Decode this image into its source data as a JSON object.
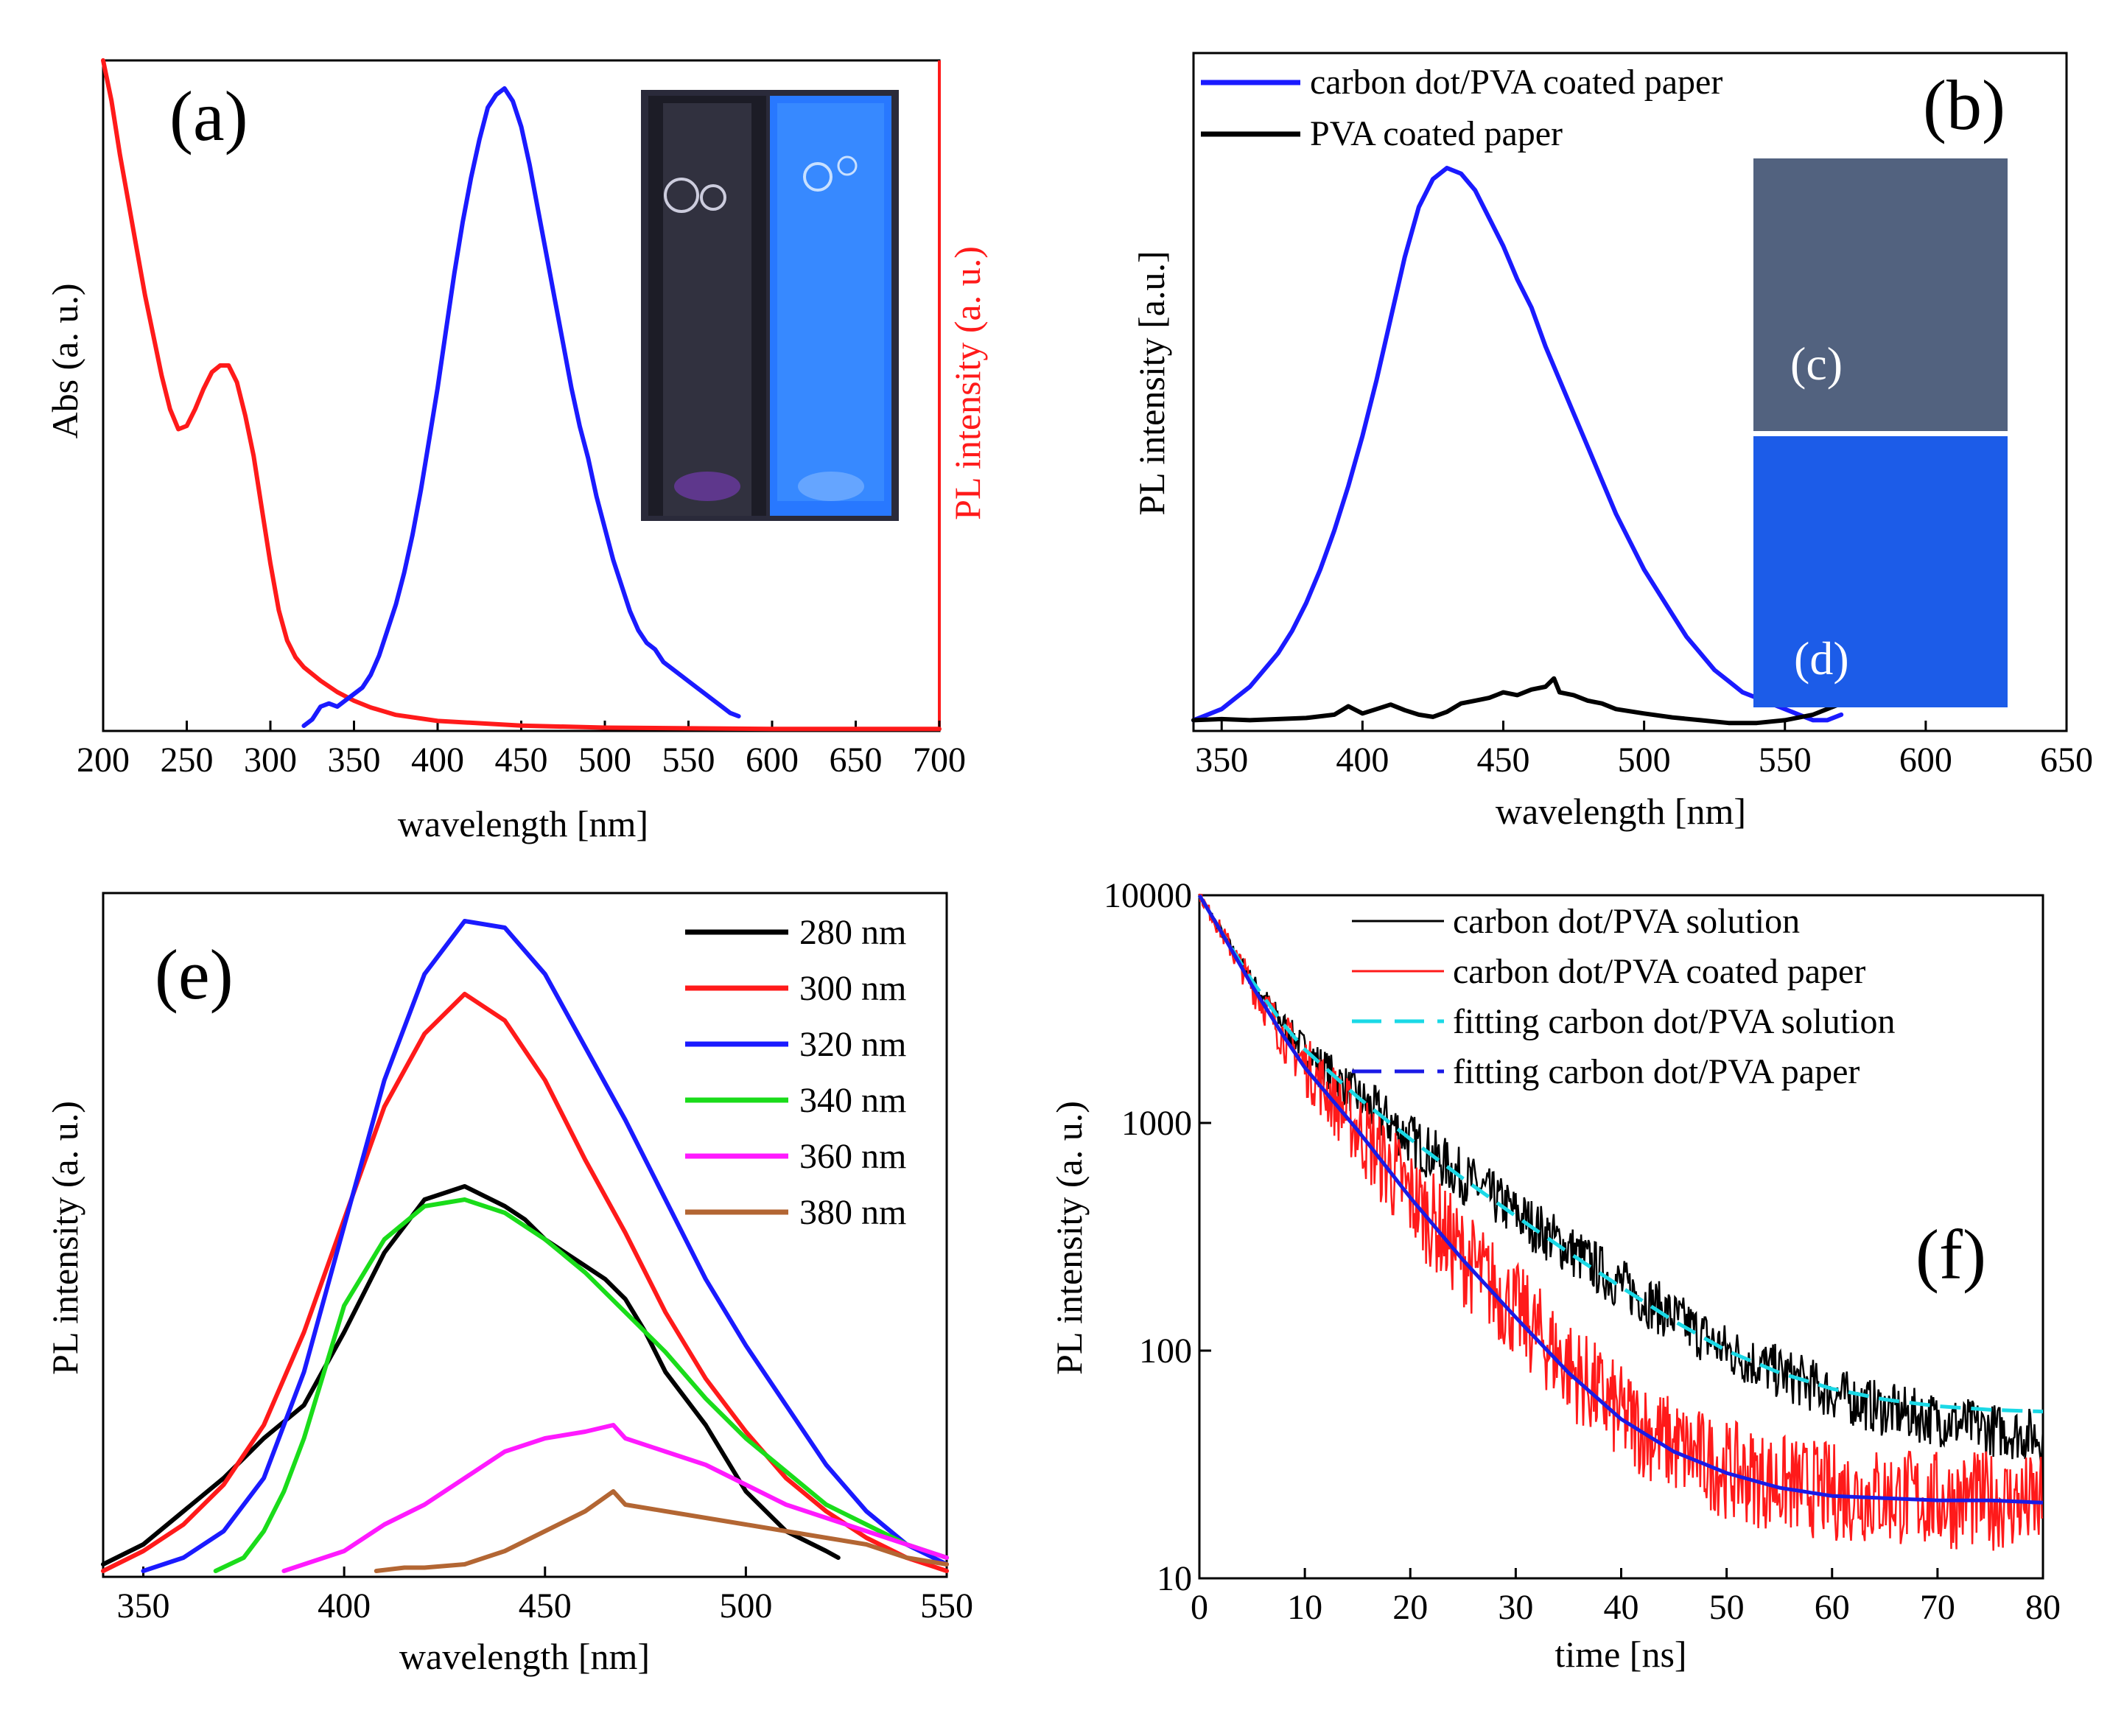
{
  "chart_data": [
    {
      "id": "a",
      "type": "line",
      "panel_label": "(a)",
      "xlabel": "wavelength [nm]",
      "ylabel_left": "Abs (a. u.)",
      "ylabel_right": "PL intensity (a. u.)",
      "xlim": [
        200,
        700
      ],
      "ylim": [
        0,
        1
      ],
      "xticks": [
        "200",
        "250",
        "300",
        "350",
        "400",
        "450",
        "500",
        "550",
        "600",
        "650",
        "700"
      ],
      "colors": {
        "abs": "#ff1a1a",
        "pl": "#1a1aff",
        "right_axis": "#ff1a1a"
      },
      "series": [
        {
          "name": "Abs",
          "color": "#ff1a1a",
          "x": [
            200,
            205,
            210,
            215,
            220,
            225,
            230,
            235,
            240,
            245,
            250,
            255,
            260,
            265,
            270,
            275,
            280,
            285,
            290,
            295,
            300,
            305,
            310,
            315,
            320,
            330,
            340,
            350,
            360,
            375,
            400,
            450,
            500,
            550,
            600,
            650,
            700
          ],
          "y": [
            1.0,
            0.94,
            0.86,
            0.79,
            0.72,
            0.65,
            0.59,
            0.53,
            0.48,
            0.45,
            0.455,
            0.48,
            0.51,
            0.535,
            0.545,
            0.545,
            0.52,
            0.47,
            0.41,
            0.33,
            0.25,
            0.18,
            0.135,
            0.11,
            0.095,
            0.075,
            0.058,
            0.045,
            0.035,
            0.024,
            0.015,
            0.008,
            0.005,
            0.004,
            0.003,
            0.003,
            0.003
          ]
        },
        {
          "name": "PL",
          "color": "#1a1aff",
          "x": [
            320,
            325,
            330,
            335,
            340,
            345,
            350,
            355,
            360,
            365,
            370,
            375,
            380,
            385,
            390,
            395,
            400,
            405,
            410,
            415,
            420,
            425,
            430,
            435,
            440,
            445,
            450,
            455,
            460,
            465,
            470,
            475,
            480,
            485,
            490,
            495,
            500,
            505,
            510,
            515,
            520,
            525,
            530,
            535,
            540,
            545,
            550,
            555,
            560,
            565,
            570,
            575,
            580
          ],
          "y": [
            0,
            0.01,
            0.03,
            0.035,
            0.03,
            0.04,
            0.05,
            0.06,
            0.08,
            0.11,
            0.15,
            0.19,
            0.24,
            0.3,
            0.37,
            0.45,
            0.53,
            0.62,
            0.71,
            0.79,
            0.86,
            0.92,
            0.97,
            0.99,
            1.0,
            0.98,
            0.94,
            0.88,
            0.81,
            0.74,
            0.67,
            0.6,
            0.53,
            0.47,
            0.42,
            0.36,
            0.31,
            0.26,
            0.22,
            0.18,
            0.15,
            0.13,
            0.12,
            0.1,
            0.09,
            0.08,
            0.07,
            0.06,
            0.05,
            0.04,
            0.03,
            0.02,
            0.015
          ]
        }
      ]
    },
    {
      "id": "b",
      "type": "line",
      "panel_label": "(b)",
      "xlabel": "wavelength [nm]",
      "ylabel": "PL intensity [a.u.]",
      "xlim": [
        340,
        650
      ],
      "ylim": [
        0,
        1
      ],
      "xticks": [
        "350",
        "400",
        "450",
        "500",
        "550",
        "600",
        "650"
      ],
      "legend": [
        "carbon dot/PVA coated paper",
        "PVA coated paper"
      ],
      "inset_labels": [
        "(c)",
        "(d)"
      ],
      "series": [
        {
          "name": "carbon dot/PVA coated paper",
          "color": "#1a1aff",
          "x": [
            340,
            345,
            350,
            355,
            360,
            365,
            370,
            375,
            380,
            385,
            390,
            395,
            400,
            405,
            410,
            415,
            420,
            425,
            430,
            435,
            440,
            445,
            450,
            455,
            460,
            465,
            470,
            475,
            480,
            485,
            490,
            495,
            500,
            505,
            510,
            515,
            520,
            525,
            530,
            535,
            540,
            545,
            550,
            555,
            560,
            565,
            570
          ],
          "y": [
            0.01,
            0.02,
            0.03,
            0.05,
            0.07,
            0.1,
            0.13,
            0.17,
            0.22,
            0.28,
            0.35,
            0.43,
            0.52,
            0.62,
            0.73,
            0.84,
            0.93,
            0.98,
            1.0,
            0.99,
            0.96,
            0.91,
            0.86,
            0.8,
            0.75,
            0.68,
            0.62,
            0.56,
            0.5,
            0.44,
            0.38,
            0.33,
            0.28,
            0.24,
            0.2,
            0.16,
            0.13,
            0.1,
            0.08,
            0.06,
            0.05,
            0.04,
            0.03,
            0.02,
            0.01,
            0.01,
            0.02
          ]
        },
        {
          "name": "PVA coated paper",
          "color": "#000000",
          "x": [
            340,
            350,
            360,
            370,
            380,
            390,
            395,
            400,
            405,
            410,
            415,
            420,
            425,
            430,
            435,
            440,
            445,
            450,
            455,
            460,
            465,
            468,
            470,
            475,
            480,
            485,
            490,
            500,
            510,
            520,
            530,
            540,
            550,
            560,
            570
          ],
          "y": [
            0.01,
            0.012,
            0.01,
            0.012,
            0.014,
            0.02,
            0.035,
            0.022,
            0.03,
            0.038,
            0.028,
            0.02,
            0.016,
            0.025,
            0.04,
            0.045,
            0.05,
            0.06,
            0.055,
            0.065,
            0.07,
            0.085,
            0.06,
            0.055,
            0.045,
            0.04,
            0.03,
            0.022,
            0.015,
            0.01,
            0.005,
            0.005,
            0.01,
            0.02,
            0.04
          ]
        }
      ]
    },
    {
      "id": "e",
      "type": "line",
      "panel_label": "(e)",
      "xlabel": "wavelength [nm]",
      "ylabel": "PL intensity (a. u.)",
      "xlim": [
        340,
        550
      ],
      "ylim": [
        0,
        1
      ],
      "xticks": [
        "350",
        "400",
        "450",
        "500",
        "550"
      ],
      "series": [
        {
          "name": "280 nm",
          "color": "#000000",
          "x": [
            340,
            350,
            360,
            370,
            380,
            390,
            400,
            410,
            420,
            430,
            440,
            445,
            450,
            455,
            460,
            465,
            470,
            475,
            480,
            490,
            500,
            510,
            520,
            523
          ],
          "y": [
            0.01,
            0.04,
            0.09,
            0.14,
            0.2,
            0.25,
            0.36,
            0.48,
            0.56,
            0.58,
            0.55,
            0.53,
            0.5,
            0.48,
            0.46,
            0.44,
            0.41,
            0.36,
            0.3,
            0.22,
            0.12,
            0.06,
            0.03,
            0.02
          ]
        },
        {
          "name": "300 nm",
          "color": "#ff1a1a",
          "x": [
            340,
            350,
            360,
            370,
            380,
            390,
            400,
            410,
            420,
            430,
            440,
            450,
            460,
            470,
            480,
            490,
            500,
            510,
            520,
            530,
            540,
            550
          ],
          "y": [
            0,
            0.03,
            0.07,
            0.13,
            0.22,
            0.36,
            0.53,
            0.7,
            0.81,
            0.87,
            0.83,
            0.74,
            0.62,
            0.51,
            0.39,
            0.29,
            0.21,
            0.14,
            0.09,
            0.05,
            0.02,
            0
          ]
        },
        {
          "name": "320 nm",
          "color": "#1a1aff",
          "x": [
            350,
            360,
            370,
            380,
            390,
            400,
            410,
            420,
            430,
            440,
            450,
            460,
            470,
            480,
            490,
            500,
            510,
            520,
            530,
            540,
            550
          ],
          "y": [
            0,
            0.02,
            0.06,
            0.14,
            0.3,
            0.52,
            0.74,
            0.9,
            0.98,
            0.97,
            0.9,
            0.79,
            0.68,
            0.56,
            0.44,
            0.34,
            0.25,
            0.16,
            0.09,
            0.04,
            0.01
          ]
        },
        {
          "name": "340 nm",
          "color": "#1adc1a",
          "x": [
            368,
            375,
            380,
            385,
            390,
            395,
            400,
            410,
            420,
            430,
            440,
            450,
            460,
            470,
            480,
            490,
            500,
            510,
            520,
            530,
            540,
            550
          ],
          "y": [
            0,
            0.02,
            0.06,
            0.12,
            0.2,
            0.3,
            0.4,
            0.5,
            0.55,
            0.56,
            0.54,
            0.5,
            0.45,
            0.39,
            0.33,
            0.26,
            0.2,
            0.15,
            0.1,
            0.07,
            0.04,
            0.02
          ]
        },
        {
          "name": "360 nm",
          "color": "#ff1aff",
          "x": [
            385,
            390,
            400,
            410,
            420,
            430,
            440,
            450,
            460,
            467,
            470,
            480,
            490,
            500,
            510,
            520,
            530,
            540,
            550
          ],
          "y": [
            0,
            0.01,
            0.03,
            0.07,
            0.1,
            0.14,
            0.18,
            0.2,
            0.21,
            0.22,
            0.2,
            0.18,
            0.16,
            0.13,
            0.1,
            0.08,
            0.06,
            0.04,
            0.02
          ]
        },
        {
          "name": "380 nm",
          "color": "#b36633",
          "x": [
            408,
            415,
            420,
            430,
            440,
            450,
            460,
            467,
            470,
            480,
            490,
            500,
            510,
            520,
            530,
            540,
            550
          ],
          "y": [
            0,
            0.005,
            0.005,
            0.01,
            0.03,
            0.06,
            0.09,
            0.12,
            0.1,
            0.09,
            0.08,
            0.07,
            0.06,
            0.05,
            0.04,
            0.02,
            0.01
          ]
        }
      ]
    },
    {
      "id": "f",
      "type": "line",
      "panel_label": "(f)",
      "xlabel": "time [ns]",
      "ylabel": "PL intensity (a. u.)",
      "xlim": [
        0,
        80
      ],
      "ylim": [
        10,
        10000
      ],
      "yscale": "log",
      "xticks": [
        "0",
        "10",
        "20",
        "30",
        "40",
        "50",
        "60",
        "70",
        "80"
      ],
      "yticks": [
        "10",
        "100",
        "1000",
        "10000"
      ],
      "series": [
        {
          "name": "carbon dot/PVA solution",
          "color": "#000000",
          "style": "noisy",
          "x": [
            0,
            2,
            5,
            8,
            10,
            15,
            20,
            25,
            30,
            35,
            40,
            45,
            50,
            55,
            60,
            65,
            70,
            75,
            80
          ],
          "y": [
            10000,
            7000,
            4200,
            2700,
            2100,
            1300,
            850,
            580,
            400,
            280,
            195,
            140,
            100,
            80,
            65,
            55,
            50,
            45,
            42
          ]
        },
        {
          "name": "carbon dot/PVA coated paper",
          "color": "#ff1a1a",
          "style": "noisy",
          "x": [
            0,
            2,
            5,
            8,
            10,
            15,
            20,
            25,
            30,
            35,
            40,
            45,
            50,
            55,
            60,
            65,
            70,
            75,
            80
          ],
          "y": [
            10000,
            7000,
            4000,
            2400,
            1800,
            950,
            480,
            260,
            150,
            85,
            52,
            38,
            30,
            26,
            24,
            23,
            22,
            22,
            21
          ]
        },
        {
          "name": "fitting carbon dot/PVA solution",
          "color": "#1ad9e6",
          "style": "dashed",
          "x": [
            0,
            2,
            5,
            8,
            10,
            15,
            20,
            25,
            30,
            35,
            40,
            45,
            50,
            55,
            60,
            65,
            70,
            75,
            80
          ],
          "y": [
            10000,
            7000,
            4200,
            2700,
            2100,
            1300,
            850,
            570,
            390,
            270,
            190,
            135,
            100,
            80,
            68,
            61,
            57,
            55,
            54
          ]
        },
        {
          "name": "fitting carbon dot/PVA   paper",
          "color": "#1a1ae6",
          "style": "solid",
          "x": [
            0,
            2,
            5,
            8,
            10,
            15,
            20,
            25,
            30,
            35,
            40,
            45,
            50,
            55,
            60,
            65,
            70,
            75,
            80
          ],
          "y": [
            10000,
            7000,
            4000,
            2400,
            1750,
            930,
            470,
            250,
            140,
            80,
            50,
            36,
            29,
            25,
            23,
            22.5,
            22,
            22,
            21.5
          ]
        }
      ]
    }
  ]
}
